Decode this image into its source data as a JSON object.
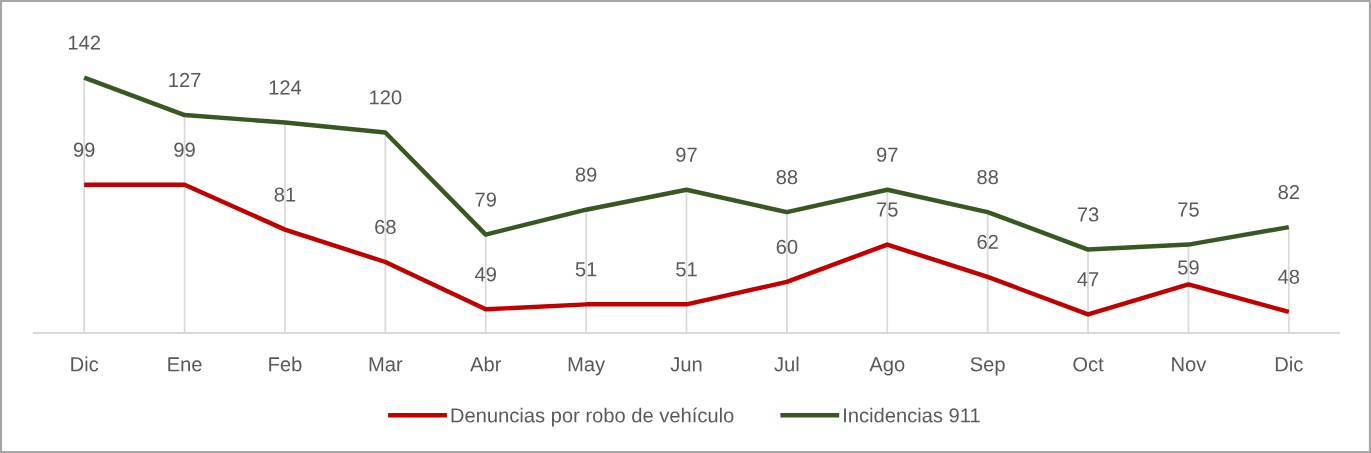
{
  "chart_data": {
    "type": "line",
    "categories": [
      "Dic",
      "Ene",
      "Feb",
      "Mar",
      "Abr",
      "May",
      "Jun",
      "Jul",
      "Ago",
      "Sep",
      "Oct",
      "Nov",
      "Dic"
    ],
    "series": [
      {
        "name": "Denuncias por robo de vehículo",
        "color": "#c00000",
        "values": [
          99,
          99,
          81,
          68,
          49,
          51,
          51,
          60,
          75,
          62,
          47,
          59,
          48
        ]
      },
      {
        "name": "Incidencias 911",
        "color": "#385723",
        "values": [
          142,
          127,
          124,
          120,
          79,
          89,
          97,
          88,
          97,
          88,
          73,
          75,
          82
        ]
      }
    ],
    "data_labels": true,
    "grid": "x",
    "legend": "bottom",
    "line_style": "solid",
    "tick_labels": "x"
  }
}
